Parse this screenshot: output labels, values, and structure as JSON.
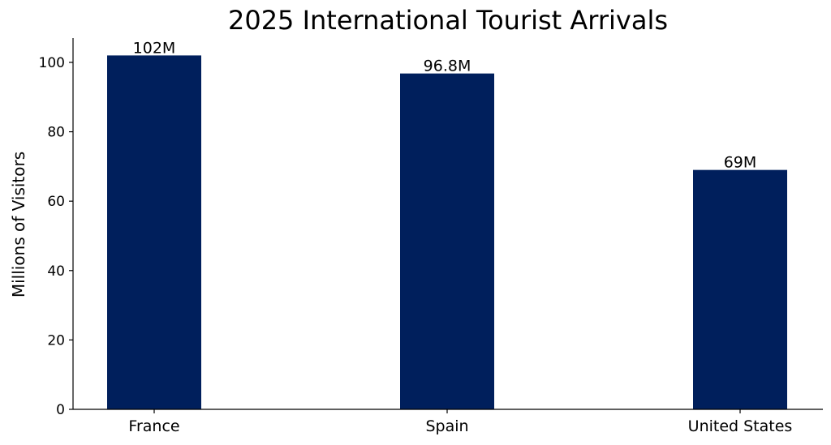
{
  "chart_data": {
    "type": "bar",
    "title": "2025 International Tourist Arrivals",
    "ylabel": "Millions of Visitors",
    "xlabel": "",
    "categories": [
      "France",
      "Spain",
      "United States"
    ],
    "values": [
      102,
      96.8,
      69
    ],
    "data_labels": [
      "102M",
      "96.8M",
      "69M"
    ],
    "ylim": [
      0,
      107
    ],
    "yticks": [
      0,
      20,
      40,
      60,
      80,
      100
    ],
    "bar_color": "#001f5c",
    "grid": false
  }
}
